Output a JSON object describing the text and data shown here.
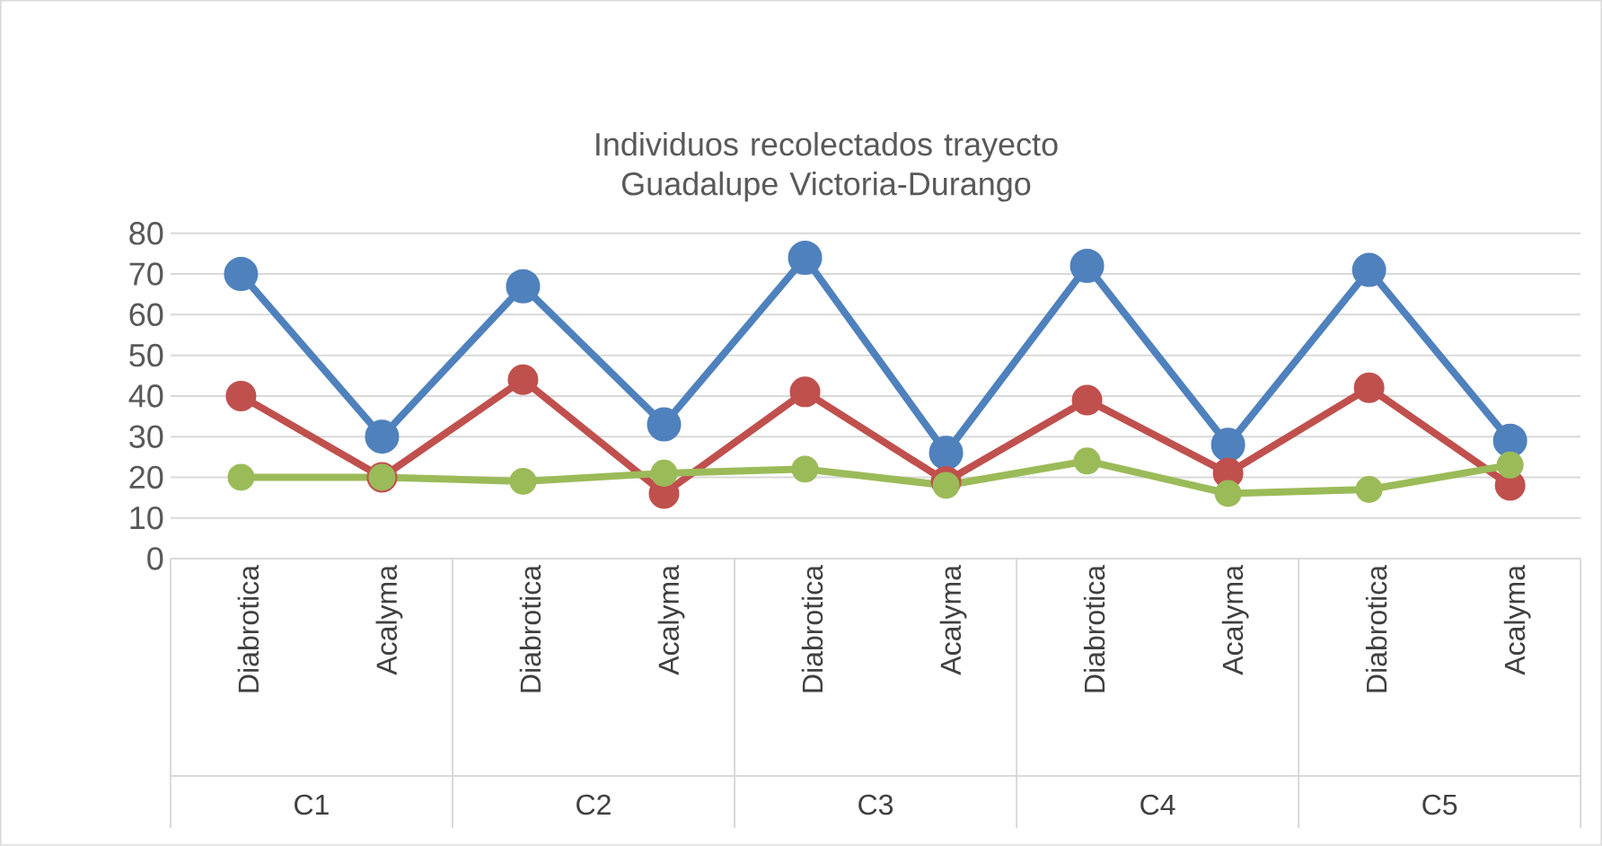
{
  "chart_data": {
    "type": "line",
    "title": "Individuos recolectados trayecto Guadalupe Victoria-Durango",
    "categories": [
      "Diabrotica",
      "Acalyma",
      "Diabrotica",
      "Acalyma",
      "Diabrotica",
      "Acalyma",
      "Diabrotica",
      "Acalyma",
      "Diabrotica",
      "Acalyma"
    ],
    "series": [
      {
        "color": "#4f81bd",
        "values": [
          70,
          30,
          67,
          33,
          74,
          26,
          72,
          28,
          71,
          29
        ]
      },
      {
        "color": "#c0504d",
        "values": [
          40,
          20,
          44,
          16,
          41,
          19,
          39,
          21,
          42,
          18
        ]
      },
      {
        "color": "#9bbb59",
        "values": [
          20,
          20,
          19,
          21,
          22,
          18,
          24,
          16,
          17,
          23
        ]
      }
    ],
    "annotations": [
      "C1",
      "C2",
      "C3",
      "C4",
      "C5"
    ],
    "ylim": [
      0,
      80
    ],
    "yticks": [
      0,
      10,
      20,
      30,
      40,
      50,
      60,
      70,
      80
    ],
    "grid": "y",
    "marker": "circle",
    "line_style": "solid"
  }
}
